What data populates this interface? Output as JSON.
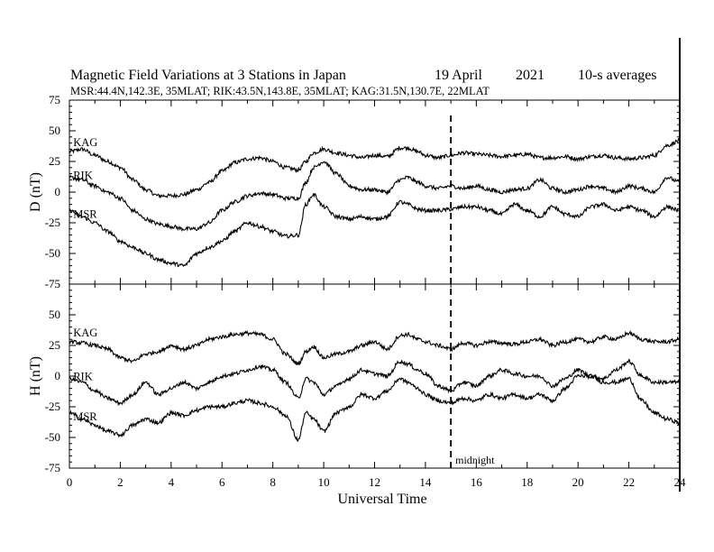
{
  "header": {
    "title": "Magnetic Field Variations at 3 Stations in Japan",
    "date": "19  April",
    "year": "2021",
    "averaging": "10-s averages",
    "stations_line": "MSR:44.4N,142.3E, 35MLAT;  RIK:43.5N,143.8E, 35MLAT;  KAG:31.5N,130.7E, 22MLAT"
  },
  "chart_data": [
    {
      "type": "line",
      "panel": "D",
      "ylabel": "D (nT)",
      "xlabel": "",
      "xlim": [
        0,
        24
      ],
      "ylim": [
        -75,
        75
      ],
      "yticks": [
        75,
        50,
        25,
        0,
        -25,
        -50,
        -75
      ],
      "line_color": "#000000",
      "series": [
        {
          "name": "KAG",
          "x": [
            0,
            0.5,
            1,
            1.5,
            2,
            2.5,
            3,
            3.5,
            4,
            4.5,
            5,
            5.5,
            6,
            6.5,
            7,
            7.5,
            8,
            8.5,
            9,
            9.3,
            9.6,
            10,
            10.5,
            11,
            11.5,
            12,
            12.5,
            13,
            13.3,
            13.7,
            14,
            14.5,
            15,
            15.5,
            16,
            16.5,
            17,
            17.5,
            18,
            18.5,
            19,
            19.5,
            20,
            20.5,
            21,
            21.5,
            22,
            22.5,
            23,
            23.5,
            24
          ],
          "values": [
            33,
            35,
            30,
            25,
            20,
            10,
            2,
            -3,
            -3,
            -2,
            2,
            8,
            17,
            24,
            27,
            28,
            25,
            20,
            18,
            25,
            32,
            35,
            32,
            30,
            28,
            30,
            29,
            36,
            36,
            33,
            30,
            28,
            30,
            32,
            31,
            30,
            29,
            30,
            31,
            28,
            28,
            29,
            27,
            29,
            30,
            28,
            27,
            28,
            30,
            38,
            42
          ]
        },
        {
          "name": "RIK",
          "x": [
            0,
            0.5,
            1,
            1.5,
            2,
            2.5,
            3,
            3.5,
            4,
            4.5,
            5,
            5.5,
            6,
            6.5,
            7,
            7.5,
            8,
            8.5,
            9,
            9.3,
            9.6,
            10,
            10.5,
            11,
            11.5,
            12,
            12.5,
            13,
            13.3,
            13.7,
            14,
            14.5,
            15,
            15.5,
            16,
            16.5,
            17,
            17.5,
            18,
            18.5,
            19,
            19.5,
            20,
            20.5,
            21,
            21.5,
            22,
            22.5,
            23,
            23.5,
            24
          ],
          "values": [
            12,
            10,
            5,
            0,
            -5,
            -15,
            -22,
            -26,
            -28,
            -30,
            -30,
            -25,
            -15,
            -8,
            -3,
            -1,
            -2,
            -5,
            -5,
            8,
            20,
            25,
            15,
            5,
            2,
            2,
            0,
            10,
            12,
            8,
            5,
            3,
            5,
            3,
            5,
            2,
            0,
            2,
            3,
            10,
            3,
            0,
            2,
            5,
            3,
            0,
            5,
            3,
            0,
            12,
            8
          ]
        },
        {
          "name": "MSR",
          "x": [
            0,
            0.5,
            1,
            1.5,
            2,
            2.5,
            3,
            3.5,
            4,
            4.5,
            5,
            5.5,
            6,
            6.5,
            7,
            7.5,
            8,
            8.5,
            9,
            9.3,
            9.6,
            10,
            10.5,
            11,
            11.5,
            12,
            12.5,
            13,
            13.3,
            13.7,
            14,
            14.5,
            15,
            15.5,
            16,
            16.5,
            17,
            17.5,
            18,
            18.5,
            19,
            19.5,
            20,
            20.5,
            21,
            21.5,
            22,
            22.5,
            23,
            23.5,
            24
          ],
          "values": [
            -15,
            -20,
            -25,
            -32,
            -40,
            -45,
            -50,
            -55,
            -58,
            -60,
            -50,
            -45,
            -40,
            -32,
            -25,
            -28,
            -32,
            -36,
            -35,
            -10,
            -2,
            -12,
            -20,
            -22,
            -20,
            -22,
            -20,
            -8,
            -10,
            -14,
            -15,
            -15,
            -14,
            -12,
            -12,
            -15,
            -18,
            -10,
            -15,
            -20,
            -12,
            -18,
            -20,
            -12,
            -10,
            -15,
            -12,
            -15,
            -20,
            -12,
            -15
          ]
        }
      ]
    },
    {
      "type": "line",
      "panel": "H",
      "ylabel": "H (nT)",
      "xlabel": "Universal Time",
      "xlim": [
        0,
        24
      ],
      "ylim": [
        -75,
        75
      ],
      "yticks": [
        50,
        25,
        0,
        -25,
        -50,
        -75
      ],
      "xticks": [
        0,
        2,
        4,
        6,
        8,
        10,
        12,
        14,
        16,
        18,
        20,
        22,
        24
      ],
      "line_color": "#000000",
      "series": [
        {
          "name": "KAG",
          "x": [
            0,
            0.5,
            1,
            1.5,
            2,
            2.5,
            3,
            3.5,
            4,
            4.5,
            5,
            5.5,
            6,
            6.5,
            7,
            7.5,
            8,
            8.5,
            9,
            9.3,
            9.6,
            10,
            10.5,
            11,
            11.5,
            12,
            12.5,
            13,
            13.3,
            13.7,
            14,
            14.5,
            15,
            15.5,
            16,
            16.5,
            17,
            17.5,
            18,
            18.5,
            19,
            19.5,
            20,
            20.5,
            21,
            21.5,
            22,
            22.5,
            23,
            23.5,
            24
          ],
          "values": [
            28,
            27,
            25,
            22,
            15,
            12,
            18,
            20,
            25,
            22,
            25,
            30,
            32,
            34,
            35,
            34,
            30,
            18,
            10,
            20,
            24,
            15,
            18,
            20,
            25,
            28,
            22,
            33,
            34,
            30,
            28,
            25,
            22,
            27,
            25,
            28,
            27,
            26,
            28,
            30,
            25,
            28,
            30,
            28,
            32,
            30,
            35,
            30,
            28,
            28,
            30
          ]
        },
        {
          "name": "RIK",
          "x": [
            0,
            0.5,
            1,
            1.5,
            2,
            2.5,
            3,
            3.5,
            4,
            4.5,
            5,
            5.5,
            6,
            6.5,
            7,
            7.5,
            8,
            8.5,
            9,
            9.3,
            9.6,
            10,
            10.5,
            11,
            11.5,
            12,
            12.5,
            13,
            13.3,
            13.7,
            14,
            14.5,
            15,
            15.5,
            16,
            16.5,
            17,
            17.5,
            18,
            18.5,
            19,
            19.5,
            20,
            20.5,
            21,
            21.5,
            22,
            22.5,
            23,
            23.5,
            24
          ],
          "values": [
            -2,
            -5,
            -12,
            -18,
            -22,
            -15,
            -5,
            -15,
            -10,
            -5,
            -10,
            -5,
            0,
            2,
            5,
            8,
            5,
            -5,
            -18,
            -2,
            -5,
            -15,
            -8,
            -2,
            5,
            2,
            0,
            12,
            10,
            5,
            2,
            -8,
            -12,
            -5,
            -8,
            0,
            5,
            2,
            0,
            0,
            -8,
            -2,
            5,
            0,
            -2,
            5,
            12,
            0,
            -5,
            -5,
            -5
          ]
        },
        {
          "name": "MSR",
          "x": [
            0,
            0.5,
            1,
            1.5,
            2,
            2.5,
            3,
            3.5,
            4,
            4.5,
            5,
            5.5,
            6,
            6.5,
            7,
            7.5,
            8,
            8.5,
            9,
            9.3,
            9.6,
            10,
            10.5,
            11,
            11.5,
            12,
            12.5,
            13,
            13.3,
            13.7,
            14,
            14.5,
            15,
            15.5,
            16,
            16.5,
            17,
            17.5,
            18,
            18.5,
            19,
            19.5,
            20,
            20.5,
            21,
            21.5,
            22,
            22.5,
            23,
            23.5,
            24
          ],
          "values": [
            -30,
            -35,
            -40,
            -45,
            -48,
            -40,
            -35,
            -38,
            -30,
            -32,
            -28,
            -25,
            -25,
            -22,
            -20,
            -22,
            -25,
            -32,
            -52,
            -30,
            -35,
            -45,
            -30,
            -25,
            -15,
            -18,
            -12,
            -2,
            -5,
            -10,
            -15,
            -20,
            -22,
            -18,
            -20,
            -15,
            -18,
            -15,
            -18,
            -15,
            -20,
            -10,
            0,
            0,
            -5,
            -5,
            -2,
            -20,
            -30,
            -35,
            -38
          ]
        }
      ]
    }
  ],
  "annotations": {
    "midnight_label": "midnight",
    "midnight_ut": 15
  }
}
